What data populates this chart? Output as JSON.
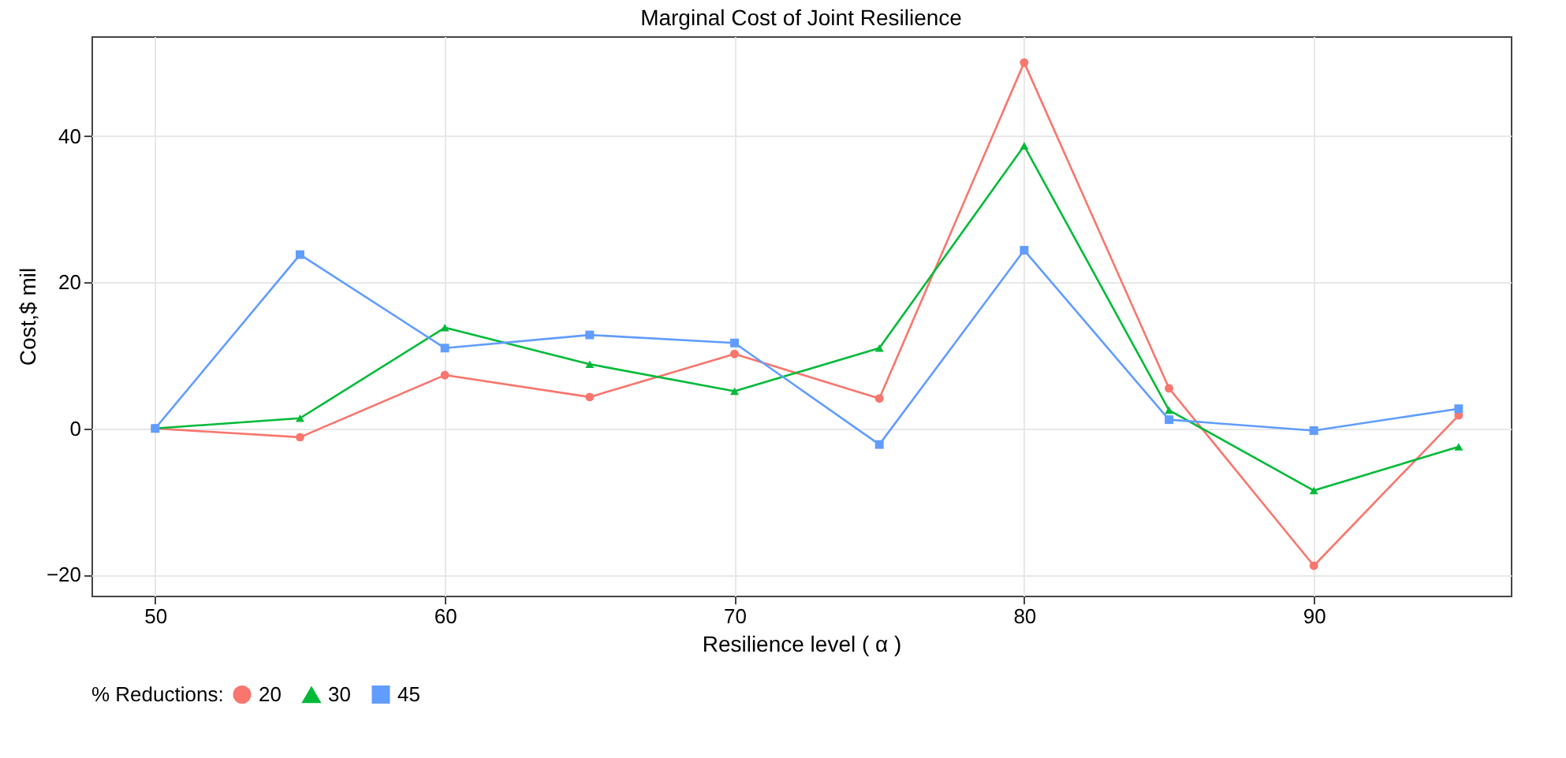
{
  "chart_data": {
    "type": "line",
    "title": "Marginal Cost of Joint Resilience",
    "xlabel": "Resilience level ( α )",
    "ylabel": "Cost,$ mil",
    "legend_title": "% Reductions:",
    "x": [
      50,
      55,
      60,
      65,
      70,
      75,
      80,
      85,
      90,
      95
    ],
    "series": [
      {
        "name": "20",
        "color": "#f8766d",
        "marker": "circle",
        "values": [
          0,
          -1.2,
          7.3,
          4.3,
          10.2,
          4.1,
          50.1,
          5.5,
          -18.8,
          1.8
        ]
      },
      {
        "name": "30",
        "color": "#00ba38",
        "marker": "triangle",
        "values": [
          0,
          1.4,
          13.8,
          8.8,
          5.1,
          11,
          38.7,
          2.5,
          -8.5,
          -2.5
        ]
      },
      {
        "name": "45",
        "color": "#619cff",
        "marker": "square",
        "values": [
          0,
          23.8,
          11,
          12.8,
          11.7,
          -2.2,
          24.4,
          1.2,
          -0.3,
          2.7
        ]
      }
    ],
    "xlim": [
      47.8,
      96.8
    ],
    "xticks": [
      50,
      60,
      70,
      80,
      90
    ],
    "ylim": [
      -22.9,
      53.7
    ],
    "yticks": [
      -20,
      0,
      20,
      40
    ],
    "grid": true,
    "legend": "bottom",
    "line_style": "solid"
  }
}
